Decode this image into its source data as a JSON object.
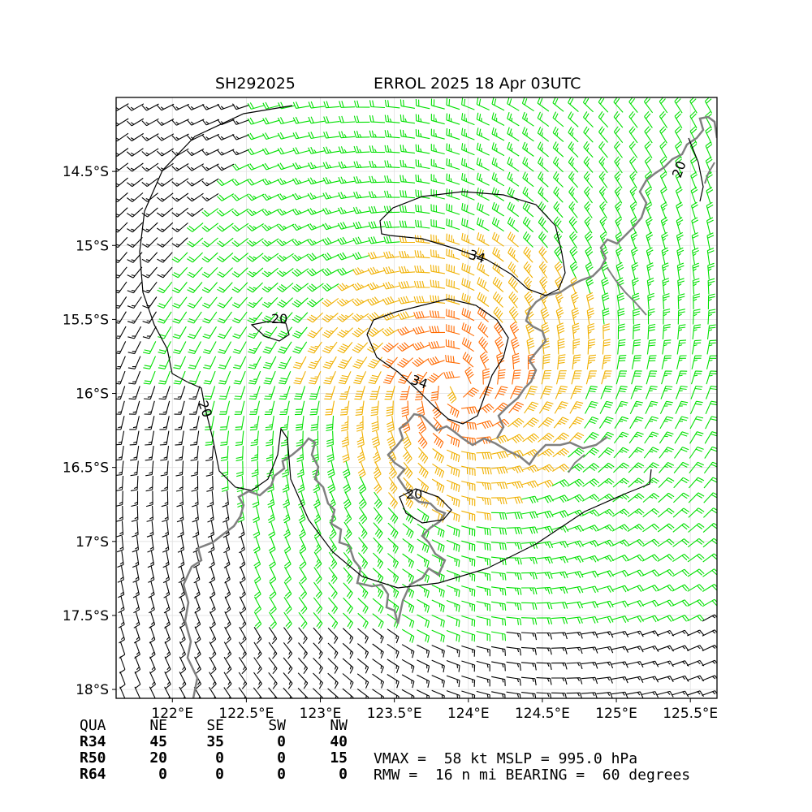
{
  "title": {
    "storm_id": "SH292025",
    "storm_info": "ERROL 2025 18 Apr 03UTC"
  },
  "map": {
    "lat_labels": [
      "14.5°S",
      "15°S",
      "15.5°S",
      "16°S",
      "16.5°S",
      "17°S",
      "17.5°S",
      "18°S"
    ],
    "lon_labels": [
      "122°E",
      "122.5°E",
      "123°E",
      "123.5°E",
      "124°E",
      "124.5°E",
      "125°E",
      "125.5°E"
    ],
    "contour_labels": [
      "34",
      "34",
      "20",
      "20",
      "20",
      "20"
    ],
    "center": {
      "lon": 123.93,
      "lat": -15.96
    },
    "colors": {
      "calm": "#000000",
      "gale": "#00e000",
      "storm": "#f0b000",
      "hurricane": "#ff6a00",
      "coast": "#808080"
    }
  },
  "wind_radii": {
    "headers": [
      "QUA",
      "NE",
      "SE",
      "SW",
      "NW"
    ],
    "rows": [
      {
        "label": "R34",
        "values": [
          "45",
          "35",
          "0",
          "40"
        ]
      },
      {
        "label": "R50",
        "values": [
          "20",
          "0",
          "0",
          "15"
        ]
      },
      {
        "label": "R64",
        "values": [
          "0",
          "0",
          "0",
          "0"
        ]
      }
    ]
  },
  "intensity": {
    "line1": "VMAX =  58 kt MSLP = 995.0 hPa",
    "line2": "RMW =  16 n mi BEARING =  60 degrees"
  }
}
